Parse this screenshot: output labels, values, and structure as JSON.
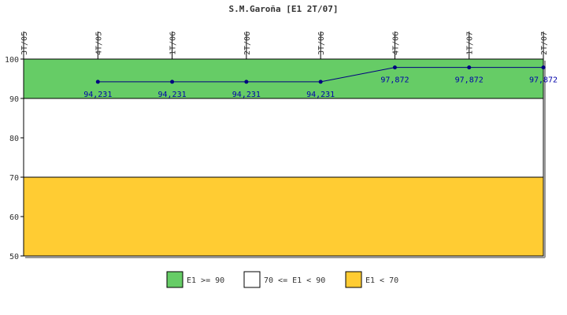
{
  "chart_data": {
    "type": "line",
    "title": "S.M.Garoña [E1 2T/07]",
    "categories": [
      "3T/05",
      "4T/05",
      "1T/06",
      "2T/06",
      "3T/06",
      "4T/06",
      "1T/07",
      "2T/07"
    ],
    "series": [
      {
        "values": [
          null,
          94.231,
          94.231,
          94.231,
          94.231,
          97.872,
          97.872,
          97.872
        ],
        "labels": [
          null,
          "94,231",
          "94,231",
          "94,231",
          "94,231",
          "97,872",
          "97,872",
          "97,872"
        ],
        "color": "#000080"
      }
    ],
    "ylim": [
      50,
      100
    ],
    "yticks": [
      50,
      60,
      70,
      80,
      90,
      100
    ],
    "bands": [
      {
        "from": 90,
        "to": 100,
        "color": "#66cc66",
        "legend": "E1 >= 90"
      },
      {
        "from": 70,
        "to": 90,
        "color": "#ffffff",
        "legend": "70 <= E1 < 90"
      },
      {
        "from": 50,
        "to": 70,
        "color": "#ffcc33",
        "legend": "E1 < 70"
      }
    ],
    "legend_position": "bottom"
  }
}
